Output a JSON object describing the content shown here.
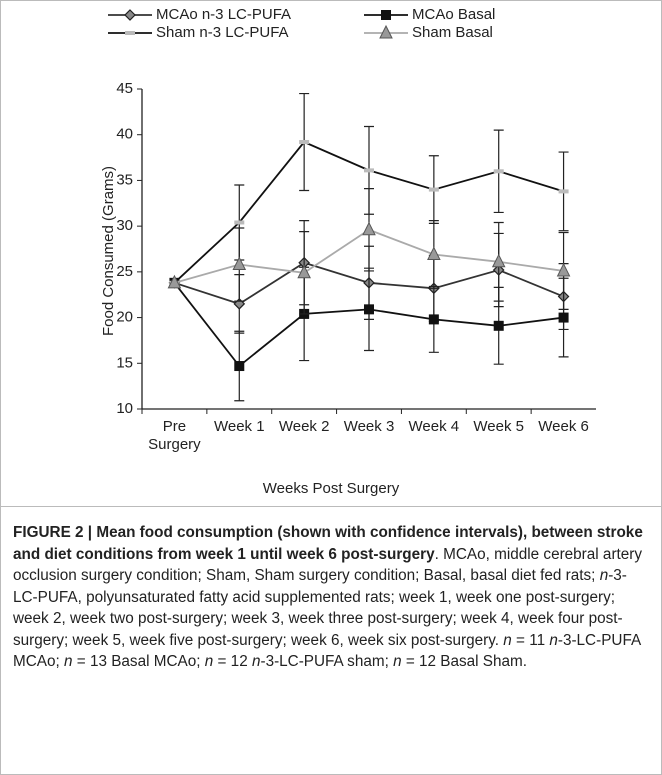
{
  "chart_data": {
    "type": "line",
    "x_label": "Weeks Post Surgery",
    "y_label": "Food Consumed (Grams)",
    "categories": [
      "Pre Surgery",
      "Week 1",
      "Week 2",
      "Week 3",
      "Week 4",
      "Week 5",
      "Week 6"
    ],
    "ylim": [
      10,
      45
    ],
    "yticks": [
      10,
      15,
      20,
      25,
      30,
      35,
      40,
      45
    ],
    "series": [
      {
        "name": "MCAo n-3 LC-PUFA",
        "color": "#333333",
        "marker": "diamond",
        "marker_color": "#888888",
        "values": [
          23.8,
          21.5,
          26.0,
          23.8,
          23.2,
          25.2,
          22.3
        ],
        "errors": [
          null,
          3.2,
          4.6,
          4.0,
          3.6,
          4.0,
          3.6
        ]
      },
      {
        "name": "MCAo Basal",
        "color": "#111111",
        "marker": "square",
        "marker_color": "#111111",
        "values": [
          23.8,
          14.7,
          20.4,
          20.9,
          19.8,
          19.1,
          20.0
        ],
        "errors": [
          null,
          3.8,
          5.1,
          4.5,
          3.6,
          4.2,
          4.3
        ]
      },
      {
        "name": "Sham n-3 LC-PUFA",
        "color": "#111111",
        "marker": "dash",
        "marker_color": "#bbbbbb",
        "values": [
          23.8,
          30.4,
          39.2,
          36.1,
          34.0,
          36.0,
          33.8
        ],
        "errors": [
          null,
          4.1,
          5.3,
          4.8,
          3.7,
          4.5,
          4.3
        ]
      },
      {
        "name": "Sham Basal",
        "color": "#aaaaaa",
        "marker": "triangle",
        "marker_color": "#999999",
        "values": [
          23.8,
          25.8,
          24.9,
          29.6,
          26.9,
          26.1,
          25.1
        ],
        "errors": [
          null,
          4.0,
          4.5,
          4.5,
          3.7,
          4.3,
          4.2
        ]
      }
    ]
  },
  "caption": [
    {
      "text": "FIGURE 2 | Mean food consumption (shown with confidence intervals), between stroke and diet conditions from week 1 until week 6 post-surgery",
      "style": "bold"
    },
    {
      "text": ". MCAo, middle cerebral artery occlusion surgery condition; Sham, Sham surgery condition; Basal, basal diet fed rats; ",
      "style": "normal"
    },
    {
      "text": "n",
      "style": "italic"
    },
    {
      "text": "-3-LC-PUFA, polyunsaturated fatty acid supplemented rats; week 1, week one post-surgery; week 2, week two post-surgery; week 3, week three post-surgery; week 4, week four post-surgery; week 5, week five post-surgery; week 6, week six post-surgery. ",
      "style": "normal"
    },
    {
      "text": "n",
      "style": "italic"
    },
    {
      "text": " = 11 ",
      "style": "normal"
    },
    {
      "text": "n",
      "style": "italic"
    },
    {
      "text": "-3-LC-PUFA MCAo; ",
      "style": "normal"
    },
    {
      "text": "n",
      "style": "italic"
    },
    {
      "text": " = 13 Basal MCAo; ",
      "style": "normal"
    },
    {
      "text": "n",
      "style": "italic"
    },
    {
      "text": " = 12 ",
      "style": "normal"
    },
    {
      "text": "n",
      "style": "italic"
    },
    {
      "text": "-3-LC-PUFA sham; ",
      "style": "normal"
    },
    {
      "text": "n",
      "style": "italic"
    },
    {
      "text": " = 12 Basal Sham.",
      "style": "normal"
    }
  ]
}
